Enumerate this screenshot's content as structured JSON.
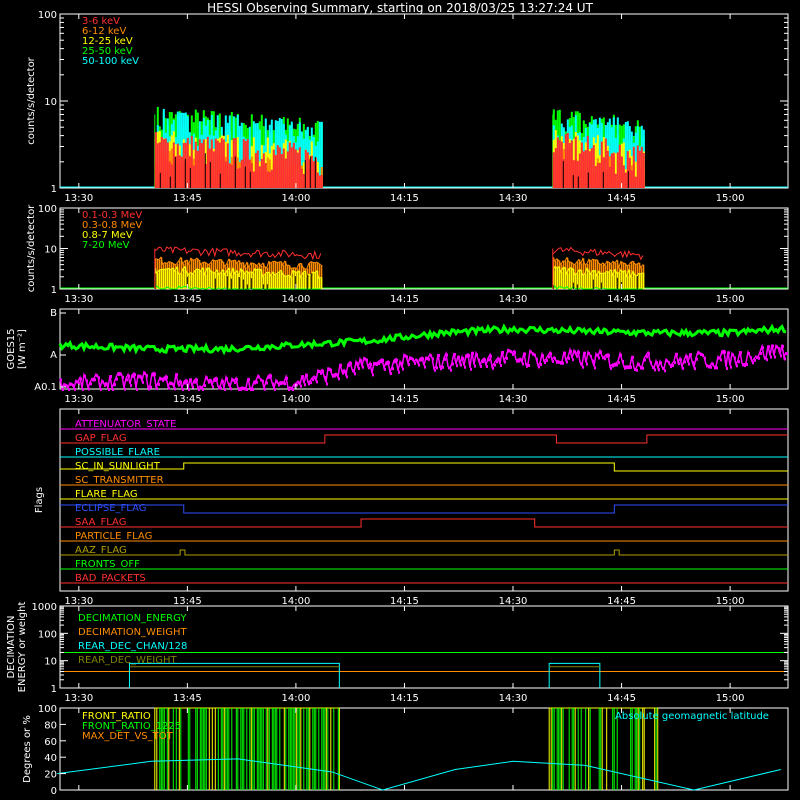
{
  "title": "HESSI Observing Summary, starting on 2018/03/25 13:27:24 UT",
  "time_axis": {
    "start": "13:27:24",
    "ticks": [
      "13:30",
      "13:45",
      "14:00",
      "14:15",
      "14:30",
      "14:45",
      "15:00"
    ]
  },
  "panels": {
    "lo": {
      "ylabel": "counts/s/detector",
      "yticks": [
        "1",
        "10",
        "100"
      ],
      "legend": [
        {
          "label": "3-6 keV",
          "color": "#ff3030"
        },
        {
          "label": "6-12 keV",
          "color": "#ff8c00"
        },
        {
          "label": "12-25 keV",
          "color": "#ffff00"
        },
        {
          "label": "25-50 keV",
          "color": "#00ff00"
        },
        {
          "label": "50-100 keV",
          "color": "#00ffff"
        }
      ]
    },
    "hi": {
      "ylabel": "counts/s/detector",
      "yticks": [
        "1",
        "10",
        "100"
      ],
      "legend": [
        {
          "label": "0.1-0.3 MeV",
          "color": "#ff3030"
        },
        {
          "label": "0.3-0.8 MeV",
          "color": "#ff8c00"
        },
        {
          "label": "0.8-7 MeV",
          "color": "#ffff00"
        },
        {
          "label": "7-20 MeV",
          "color": "#00ff00"
        }
      ]
    },
    "goes": {
      "ylabel": "GOES15",
      "ylabel2": "[W m⁻²]",
      "yticks": [
        "A0.1",
        "A",
        "B"
      ]
    },
    "flags": {
      "ylabel": "Flags",
      "items": [
        {
          "label": "ATTENUATOR_STATE",
          "color": "#ff00ff"
        },
        {
          "label": "GAP_FLAG",
          "color": "#ff3030"
        },
        {
          "label": "POSSIBLE_FLARE",
          "color": "#00ffff"
        },
        {
          "label": "SC_IN_SUNLIGHT",
          "color": "#ffff00"
        },
        {
          "label": "SC_TRANSMITTER",
          "color": "#ff8c00"
        },
        {
          "label": "FLARE_FLAG",
          "color": "#ffff00"
        },
        {
          "label": "ECLIPSE_FLAG",
          "color": "#3050ff"
        },
        {
          "label": "SAA_FLAG",
          "color": "#ff3030"
        },
        {
          "label": "PARTICLE_FLAG",
          "color": "#ff8c00"
        },
        {
          "label": "AAZ_FLAG",
          "color": "#b0a000"
        },
        {
          "label": "FRONTS_OFF",
          "color": "#00ff00"
        },
        {
          "label": "BAD_PACKETS",
          "color": "#ff3030"
        }
      ]
    },
    "decim": {
      "ylabel1": "DECIMATION",
      "ylabel2": "ENERGY or weight",
      "yticks": [
        "1",
        "10",
        "100",
        "1000"
      ],
      "legend": [
        {
          "label": "DECIMATION_ENERGY",
          "color": "#00ff00"
        },
        {
          "label": "DECIMATION_WEIGHT",
          "color": "#ff8c00"
        },
        {
          "label": "REAR_DEC_CHAN/128",
          "color": "#00ffff"
        },
        {
          "label": "REAR_DEC_WEIGHT",
          "color": "#808000"
        }
      ]
    },
    "ratio": {
      "ylabel": "Degrees or %",
      "yticks": [
        "0",
        "20",
        "40",
        "60",
        "80",
        "100"
      ],
      "legend": [
        {
          "label": "FRONT_RATIO",
          "color": "#ffff00"
        },
        {
          "label": "FRONT_RATIO_1225",
          "color": "#00ff00"
        },
        {
          "label": "MAX_DET_VS_TOT",
          "color": "#ff8c00"
        }
      ],
      "legend_right": {
        "label": "Absolute geomagnetic latitude",
        "color": "#00ffff"
      }
    }
  },
  "chart_data": [
    {
      "type": "line",
      "name": "lo_energy_rates",
      "yscale": "log",
      "ylim": [
        1,
        100
      ],
      "xlim": [
        "13:27:24",
        "15:08:00"
      ],
      "observing_intervals": [
        [
          "13:40:30",
          "14:03:30"
        ],
        [
          "14:35:30",
          "14:48:00"
        ]
      ],
      "series": [
        {
          "name": "3-6 keV",
          "level": 3.0
        },
        {
          "name": "6-12 keV",
          "level": 2.0
        },
        {
          "name": "12-25 keV",
          "level": 3.2
        },
        {
          "name": "25-50 keV",
          "level": 6.0
        },
        {
          "name": "50-100 keV",
          "level": 5.5
        }
      ]
    },
    {
      "type": "line",
      "name": "hi_energy_rates",
      "yscale": "log",
      "ylim": [
        1,
        100
      ],
      "xlim": [
        "13:27:24",
        "15:08:00"
      ],
      "observing_intervals": [
        [
          "13:40:30",
          "14:03:30"
        ],
        [
          "14:35:30",
          "14:48:00"
        ]
      ],
      "series": [
        {
          "name": "0.1-0.3 MeV",
          "level": 9.0
        },
        {
          "name": "0.3-0.8 MeV",
          "level": 5.0
        },
        {
          "name": "0.8-7 MeV",
          "level": 3.0
        },
        {
          "name": "7-20 MeV",
          "level": 1.0
        }
      ]
    },
    {
      "type": "line",
      "name": "goes_flux",
      "yscale": "log",
      "series": [
        {
          "name": "long",
          "color": "#00ff00",
          "x": [
            "13:27",
            "13:40",
            "13:50",
            "14:00",
            "14:10",
            "14:20",
            "14:30",
            "14:40",
            "14:50",
            "15:00",
            "15:07"
          ],
          "level": [
            0.55,
            0.5,
            0.5,
            0.55,
            0.6,
            0.7,
            0.75,
            0.72,
            0.7,
            0.7,
            0.75
          ]
        },
        {
          "name": "short",
          "color": "#ff00ff",
          "x": [
            "13:27",
            "13:40",
            "13:50",
            "14:00",
            "14:10",
            "14:20",
            "14:30",
            "14:40",
            "14:50",
            "15:00",
            "15:07"
          ],
          "level": [
            0.05,
            0.12,
            0.05,
            0.1,
            0.3,
            0.35,
            0.4,
            0.38,
            0.35,
            0.38,
            0.5
          ]
        }
      ]
    },
    {
      "type": "line",
      "name": "decimation",
      "yscale": "log",
      "ylim": [
        1,
        1000
      ],
      "series": [
        {
          "name": "DECIMATION_ENERGY",
          "x": [
            "13:27:24",
            "15:08:00"
          ],
          "y": [
            20,
            20
          ]
        },
        {
          "name": "DECIMATION_WEIGHT",
          "x": [
            "13:27:24",
            "15:08:00"
          ],
          "y": [
            4,
            4
          ]
        },
        {
          "name": "REAR_DEC_CHAN/128",
          "x": [
            "13:37:00",
            "14:06:00"
          ],
          "y": [
            8,
            8
          ]
        },
        {
          "name": "REAR_DEC_CHAN/128",
          "x": [
            "14:35:00",
            "14:42:00"
          ],
          "y": [
            8,
            8
          ]
        }
      ]
    },
    {
      "type": "line",
      "name": "ratios_and_latitude",
      "ylim": [
        0,
        100
      ],
      "series": [
        {
          "name": "Absolute geomagnetic latitude",
          "x": [
            "13:27",
            "13:40",
            "13:52",
            "14:05",
            "14:12",
            "14:22",
            "14:30",
            "14:40",
            "14:55",
            "15:07"
          ],
          "y": [
            20,
            35,
            38,
            22,
            0,
            25,
            35,
            30,
            0,
            25
          ]
        }
      ]
    }
  ]
}
